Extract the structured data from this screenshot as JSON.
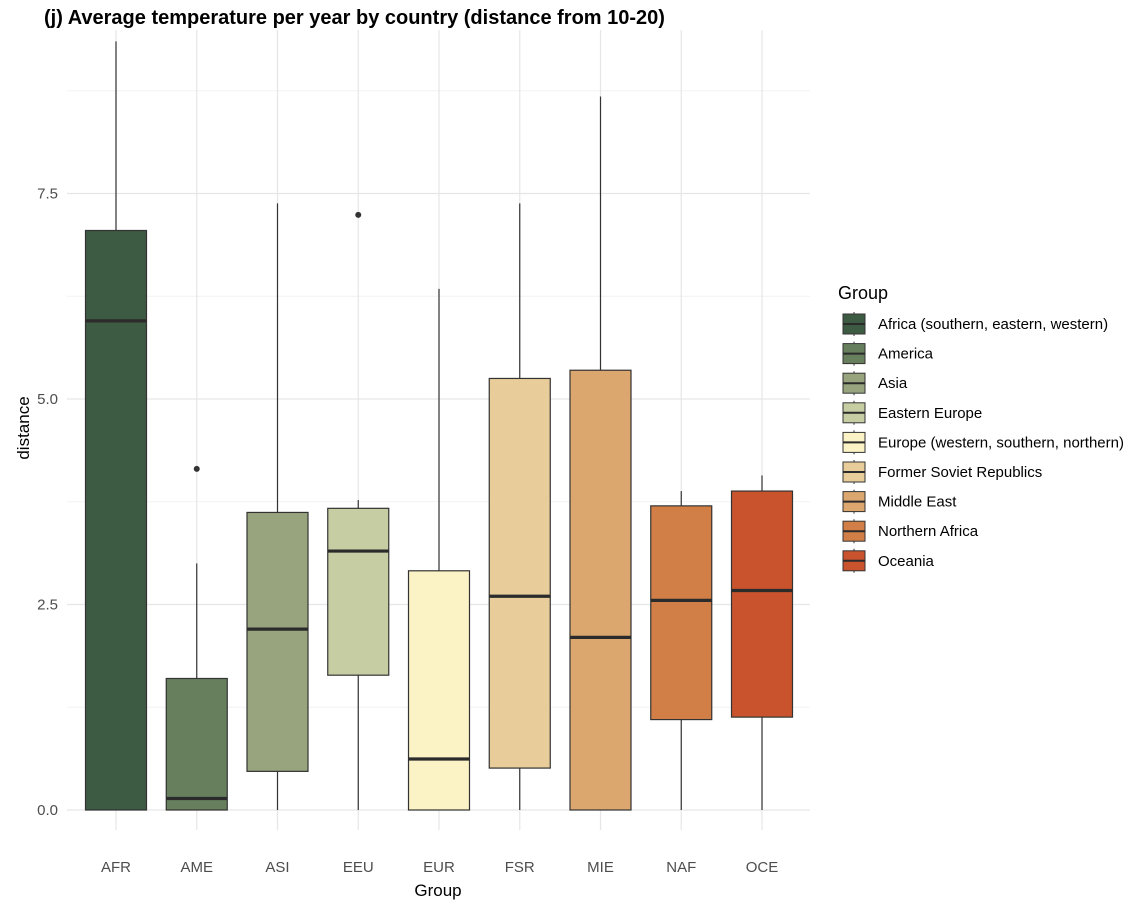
{
  "chart_data": {
    "type": "boxplot",
    "title": "(j) Average temperature per year  by country (distance from 10-20)",
    "xlabel": "Group",
    "ylabel": "distance",
    "ylim": [
      0,
      9.4
    ],
    "y_ticks": [
      {
        "value": 0,
        "label": "0.0"
      },
      {
        "value": 2.5,
        "label": "2.5"
      },
      {
        "value": 5,
        "label": "5.0"
      },
      {
        "value": 7.5,
        "label": "7.5"
      }
    ],
    "grid": true,
    "legend_title": "Group",
    "legend_position": "right",
    "categories": [
      "AFR",
      "AME",
      "ASI",
      "EEU",
      "EUR",
      "FSR",
      "MIE",
      "NAF",
      "OCE"
    ],
    "series": [
      {
        "name": "Africa (southern, eastern, western)",
        "code": "AFR",
        "color": "#3d5b43",
        "min": 0,
        "q1": 0,
        "median": 5.95,
        "q3": 7.05,
        "max": 9.35,
        "outliers": []
      },
      {
        "name": "America",
        "code": "AME",
        "color": "#687f5e",
        "min": 0,
        "q1": 0,
        "median": 0.14,
        "q3": 1.6,
        "max": 3.0,
        "outliers": [
          4.15
        ]
      },
      {
        "name": "Asia",
        "code": "ASI",
        "color": "#97a47d",
        "min": 0,
        "q1": 0.47,
        "median": 2.2,
        "q3": 3.62,
        "max": 7.38,
        "outliers": []
      },
      {
        "name": "Eastern Europe",
        "code": "EEU",
        "color": "#c6cda2",
        "min": 0,
        "q1": 1.64,
        "median": 3.15,
        "q3": 3.67,
        "max": 3.77,
        "outliers": [
          7.24
        ]
      },
      {
        "name": "Europe (western, southern, northern)",
        "code": "EUR",
        "color": "#fbf2c5",
        "min": 0,
        "q1": 0,
        "median": 0.62,
        "q3": 2.91,
        "max": 6.34,
        "outliers": []
      },
      {
        "name": "Former Soviet Republics",
        "code": "FSR",
        "color": "#e8cd9b",
        "min": 0,
        "q1": 0.51,
        "median": 2.6,
        "q3": 5.25,
        "max": 7.38,
        "outliers": []
      },
      {
        "name": "Middle East",
        "code": "MIE",
        "color": "#dca76f",
        "min": 0,
        "q1": 0,
        "median": 2.1,
        "q3": 5.35,
        "max": 8.68,
        "outliers": []
      },
      {
        "name": "Northern Africa",
        "code": "NAF",
        "color": "#d27f47",
        "min": 0,
        "q1": 1.1,
        "median": 2.55,
        "q3": 3.7,
        "max": 3.88,
        "outliers": []
      },
      {
        "name": "Oceania",
        "code": "OCE",
        "color": "#c8532d",
        "min": 0,
        "q1": 1.13,
        "median": 2.67,
        "q3": 3.88,
        "max": 4.07,
        "outliers": []
      }
    ]
  }
}
